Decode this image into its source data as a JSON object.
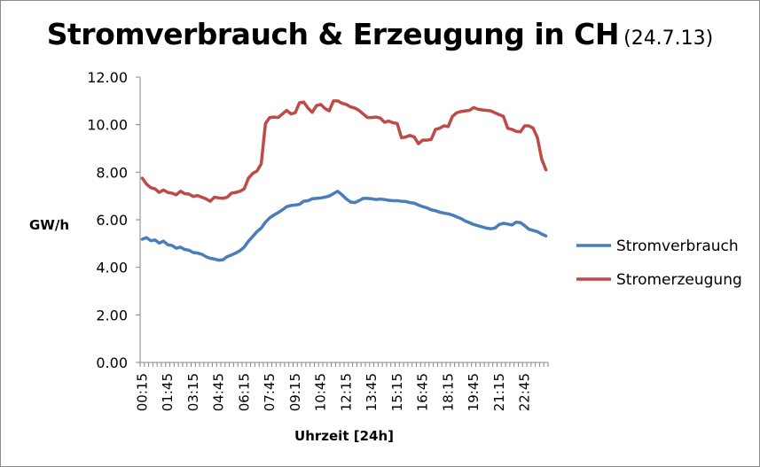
{
  "chart_data": {
    "type": "line",
    "title": "Stromverbrauch & Erzeugung in CH",
    "subtitle": "(24.7.13)",
    "xlabel": "Uhrzeit [24h]",
    "ylabel": "GW/h",
    "ylim": [
      0,
      12
    ],
    "yticks": [
      "0.00",
      "2.00",
      "4.00",
      "6.00",
      "8.00",
      "10.00",
      "12.00"
    ],
    "xtick_labels": [
      "00:15",
      "01:45",
      "03:15",
      "04:45",
      "06:15",
      "07:45",
      "09:15",
      "10:45",
      "12:15",
      "13:45",
      "15:15",
      "16:45",
      "18:15",
      "19:45",
      "21:15",
      "22:45"
    ],
    "legend_position": "right",
    "grid": false,
    "x": [
      "00:15",
      "00:30",
      "00:45",
      "01:00",
      "01:15",
      "01:30",
      "01:45",
      "02:00",
      "02:15",
      "02:30",
      "02:45",
      "03:00",
      "03:15",
      "03:30",
      "03:45",
      "04:00",
      "04:15",
      "04:30",
      "04:45",
      "05:00",
      "05:15",
      "05:30",
      "05:45",
      "06:00",
      "06:15",
      "06:30",
      "06:45",
      "07:00",
      "07:15",
      "07:30",
      "07:45",
      "08:00",
      "08:15",
      "08:30",
      "08:45",
      "09:00",
      "09:15",
      "09:30",
      "09:45",
      "10:00",
      "10:15",
      "10:30",
      "10:45",
      "11:00",
      "11:15",
      "11:30",
      "11:45",
      "12:00",
      "12:15",
      "12:30",
      "12:45",
      "13:00",
      "13:15",
      "13:30",
      "13:45",
      "14:00",
      "14:15",
      "14:30",
      "14:45",
      "15:00",
      "15:15",
      "15:30",
      "15:45",
      "16:00",
      "16:15",
      "16:30",
      "16:45",
      "17:00",
      "17:15",
      "17:30",
      "17:45",
      "18:00",
      "18:15",
      "18:30",
      "18:45",
      "19:00",
      "19:15",
      "19:30",
      "19:45",
      "20:00",
      "20:15",
      "20:30",
      "20:45",
      "21:00",
      "21:15",
      "21:30",
      "21:45",
      "22:00",
      "22:15",
      "22:30",
      "22:45",
      "23:00",
      "23:15",
      "23:30",
      "23:45",
      "24:00"
    ],
    "series": [
      {
        "name": "Stromverbrauch",
        "color": "#4a7ebb",
        "values": [
          5.18,
          5.25,
          5.12,
          5.15,
          5.02,
          5.1,
          4.95,
          4.92,
          4.8,
          4.85,
          4.75,
          4.72,
          4.62,
          4.6,
          4.55,
          4.45,
          4.38,
          4.35,
          4.3,
          4.32,
          4.45,
          4.52,
          4.6,
          4.7,
          4.85,
          5.1,
          5.3,
          5.5,
          5.65,
          5.9,
          6.08,
          6.2,
          6.3,
          6.42,
          6.55,
          6.6,
          6.62,
          6.65,
          6.78,
          6.8,
          6.88,
          6.9,
          6.92,
          6.95,
          7.0,
          7.1,
          7.2,
          7.05,
          6.88,
          6.75,
          6.72,
          6.8,
          6.9,
          6.9,
          6.88,
          6.85,
          6.87,
          6.85,
          6.82,
          6.8,
          6.8,
          6.78,
          6.77,
          6.72,
          6.7,
          6.62,
          6.55,
          6.5,
          6.42,
          6.38,
          6.32,
          6.28,
          6.25,
          6.2,
          6.12,
          6.05,
          5.95,
          5.88,
          5.8,
          5.75,
          5.7,
          5.65,
          5.62,
          5.65,
          5.8,
          5.85,
          5.82,
          5.78,
          5.9,
          5.88,
          5.75,
          5.6,
          5.55,
          5.5,
          5.4,
          5.32
        ]
      },
      {
        "name": "Stromerzeugung",
        "color": "#be4b48",
        "values": [
          7.75,
          7.5,
          7.35,
          7.3,
          7.15,
          7.25,
          7.15,
          7.12,
          7.05,
          7.2,
          7.1,
          7.08,
          6.98,
          7.02,
          6.95,
          6.88,
          6.78,
          6.95,
          6.92,
          6.9,
          6.95,
          7.12,
          7.15,
          7.2,
          7.3,
          7.75,
          7.95,
          8.05,
          8.35,
          10.05,
          10.3,
          10.32,
          10.3,
          10.45,
          10.6,
          10.45,
          10.5,
          10.92,
          10.95,
          10.7,
          10.52,
          10.8,
          10.85,
          10.68,
          10.58,
          11.0,
          11.0,
          10.9,
          10.85,
          10.75,
          10.7,
          10.6,
          10.45,
          10.3,
          10.3,
          10.32,
          10.28,
          10.1,
          10.15,
          10.08,
          10.05,
          9.45,
          9.48,
          9.55,
          9.48,
          9.2,
          9.35,
          9.35,
          9.38,
          9.8,
          9.85,
          9.95,
          9.92,
          10.35,
          10.5,
          10.55,
          10.58,
          10.6,
          10.72,
          10.65,
          10.62,
          10.6,
          10.58,
          10.5,
          10.42,
          10.35,
          9.85,
          9.8,
          9.72,
          9.7,
          9.95,
          9.95,
          9.85,
          9.45,
          8.55,
          8.1
        ]
      }
    ]
  }
}
